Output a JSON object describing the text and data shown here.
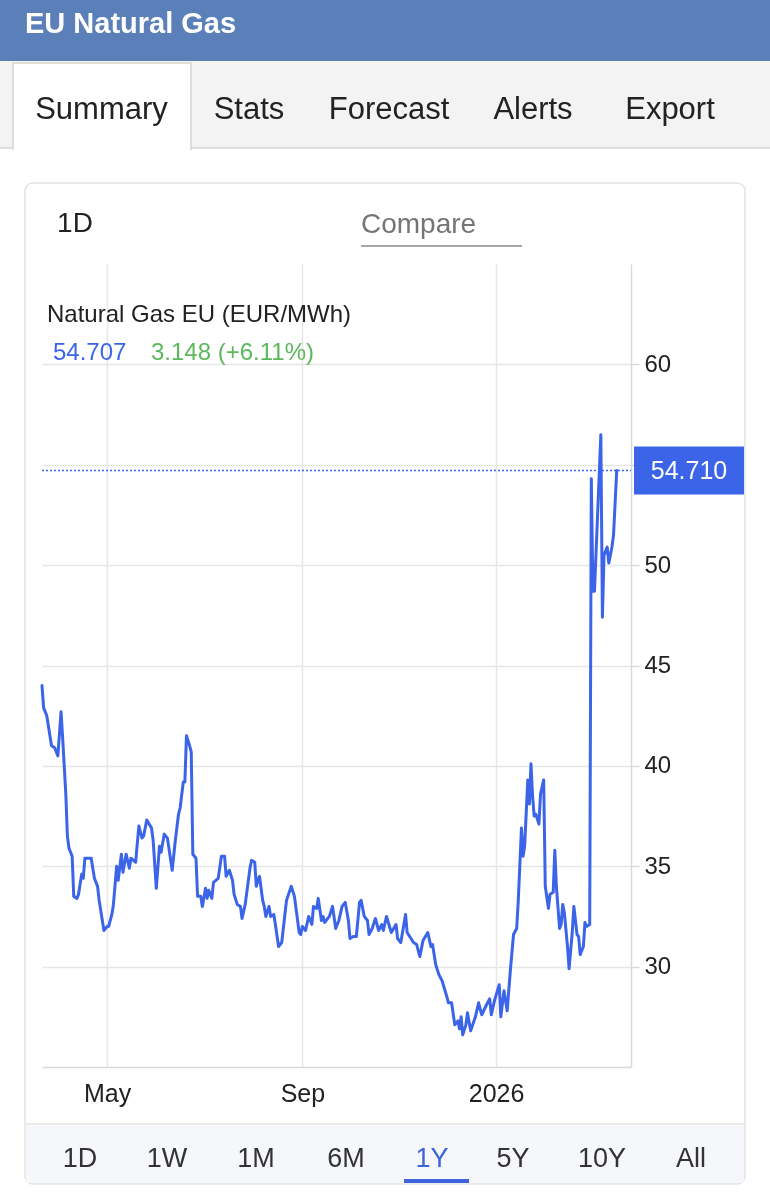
{
  "chart_data": {
    "type": "line",
    "title": "EU Natural Gas",
    "subtitle": "Natural Gas EU (EUR/MWh)",
    "annotations": [
      "54.707",
      "3.148 (+6.11%)",
      "Summary",
      "Stats",
      "Forecast",
      "Alerts",
      "Export",
      "1D",
      "Compare",
      "1D",
      "1W",
      "1M",
      "6M",
      "1Y",
      "5Y",
      "10Y",
      "All"
    ],
    "x": [
      "2025-03-21",
      "2025-03-22",
      "2025-03-24",
      "2025-03-25",
      "2025-03-27",
      "2025-03-29",
      "2025-03-31",
      "2025-04-02",
      "2025-04-03",
      "2025-04-05",
      "2025-04-06",
      "2025-04-07",
      "2025-04-09",
      "2025-04-10",
      "2025-04-12",
      "2025-04-13",
      "2025-04-15",
      "2025-04-16",
      "2025-04-17",
      "2025-04-21",
      "2025-04-23",
      "2025-04-25",
      "2025-04-26",
      "2025-04-29",
      "2025-05-01",
      "2025-05-02",
      "2025-05-04",
      "2025-05-05",
      "2025-05-07",
      "2025-05-08",
      "2025-05-10",
      "2025-05-11",
      "2025-05-13",
      "2025-05-15",
      "2025-05-16",
      "2025-05-19",
      "2025-05-21",
      "2025-05-23",
      "2025-05-24",
      "2025-05-26",
      "2025-05-29",
      "2025-05-30",
      "2025-06-01",
      "2025-06-03",
      "2025-06-04",
      "2025-06-06",
      "2025-06-08",
      "2025-06-11",
      "2025-06-13",
      "2025-06-15",
      "2025-06-16",
      "2025-06-18",
      "2025-06-19",
      "2025-06-20",
      "2025-06-22",
      "2025-06-23",
      "2025-06-24",
      "2025-06-26",
      "2025-06-27",
      "2025-06-29",
      "2025-06-30",
      "2025-07-02",
      "2025-07-03",
      "2025-07-04",
      "2025-07-06",
      "2025-07-07",
      "2025-07-10",
      "2025-07-12",
      "2025-07-14",
      "2025-07-15",
      "2025-07-17",
      "2025-07-19",
      "2025-07-20",
      "2025-07-22",
      "2025-07-24",
      "2025-07-25",
      "2025-07-27",
      "2025-07-30",
      "2025-07-31",
      "2025-08-02",
      "2025-08-03",
      "2025-08-04",
      "2025-08-05",
      "2025-08-07",
      "2025-08-08",
      "2025-08-09",
      "2025-08-11",
      "2025-08-12",
      "2025-08-14",
      "2025-08-15",
      "2025-08-17",
      "2025-08-19",
      "2025-08-22",
      "2025-08-25",
      "2025-08-27",
      "2025-08-30",
      "2025-08-31",
      "2025-09-01",
      "2025-09-03",
      "2025-09-05",
      "2025-09-07",
      "2025-09-08",
      "2025-09-10",
      "2025-09-11",
      "2025-09-13",
      "2025-09-14",
      "2025-09-15",
      "2025-09-18",
      "2025-09-20",
      "2025-09-22",
      "2025-09-24",
      "2025-09-26",
      "2025-09-28",
      "2025-09-30",
      "2025-10-01",
      "2025-10-03",
      "2025-10-05",
      "2025-10-07",
      "2025-10-08",
      "2025-10-10",
      "2025-10-12",
      "2025-10-13",
      "2025-10-15",
      "2025-10-17",
      "2025-10-19",
      "2025-10-21",
      "2025-10-22",
      "2025-10-24",
      "2025-10-27",
      "2025-10-30",
      "2025-10-31",
      "2025-11-02",
      "2025-11-05",
      "2025-11-06",
      "2025-11-10",
      "2025-11-12",
      "2025-11-14",
      "2025-11-16",
      "2025-11-19",
      "2025-11-21",
      "2025-11-22",
      "2025-11-24",
      "2025-11-26",
      "2025-11-28",
      "2025-12-01",
      "2025-12-02",
      "2025-12-04",
      "2025-12-06",
      "2025-12-08",
      "2025-12-09",
      "2025-12-10",
      "2025-12-11",
      "2025-12-13",
      "2025-12-14",
      "2025-12-16",
      "2025-12-19",
      "2025-12-21",
      "2025-12-23",
      "2025-12-26",
      "2025-12-28",
      "2025-12-29",
      "2025-12-31",
      "2026-01-03",
      "2026-01-04",
      "2026-01-06",
      "2026-01-08",
      "2026-01-10",
      "2026-01-12",
      "2026-01-14",
      "2026-01-15",
      "2026-01-17",
      "2026-01-18",
      "2026-01-19",
      "2026-01-21",
      "2026-01-22",
      "2026-01-23",
      "2026-01-24",
      "2026-01-25",
      "2026-01-26",
      "2026-01-28",
      "2026-01-29",
      "2026-01-31",
      "2026-02-01",
      "2026-02-03",
      "2026-02-04",
      "2026-02-06",
      "2026-02-07",
      "2026-02-08",
      "2026-02-10",
      "2026-02-11",
      "2026-02-12",
      "2026-02-13",
      "2026-02-15",
      "2026-02-16",
      "2026-02-18",
      "2026-02-19",
      "2026-02-21",
      "2026-02-22",
      "2026-02-23",
      "2026-02-25",
      "2026-02-26",
      "2026-02-27",
      "2026-03-01",
      "2026-03-02",
      "2026-03-03",
      "2026-03-04",
      "2026-03-08",
      "2026-03-09",
      "2026-03-10",
      "2026-03-12",
      "2026-03-13",
      "2026-03-15",
      "2026-03-16",
      "2026-03-18"
    ],
    "series": [
      {
        "color": "#3b64e8",
        "values": [
          44.0,
          42.9,
          42.5,
          42.0,
          41.0,
          40.9,
          40.5,
          42.7,
          41.4,
          38.6,
          36.5,
          35.9,
          35.5,
          33.5,
          33.4,
          33.6,
          34.6,
          34.4,
          35.4,
          35.4,
          34.4,
          34.0,
          33.3,
          31.8,
          32.0,
          32.0,
          32.6,
          33.1,
          35.0,
          34.3,
          35.6,
          34.7,
          35.6,
          34.9,
          35.4,
          35.2,
          37.0,
          36.4,
          36.5,
          37.3,
          36.9,
          36.3,
          33.9,
          36.0,
          35.7,
          36.6,
          36.4,
          34.8,
          36.3,
          37.6,
          37.9,
          39.2,
          39.2,
          41.5,
          41.0,
          40.7,
          35.6,
          35.4,
          33.5,
          33.5,
          33.0,
          33.9,
          33.4,
          33.8,
          33.4,
          34.2,
          34.4,
          35.5,
          35.5,
          34.5,
          34.8,
          34.3,
          33.6,
          33.1,
          33.0,
          32.4,
          33.1,
          34.9,
          35.3,
          35.2,
          34.0,
          34.3,
          34.5,
          33.3,
          33.0,
          32.5,
          33.0,
          32.5,
          32.6,
          32.1,
          31.0,
          31.2,
          33.3,
          34.0,
          33.5,
          31.7,
          31.6,
          32.0,
          31.8,
          32.5,
          32.1,
          33.0,
          32.9,
          33.4,
          32.3,
          32.5,
          32.2,
          32.5,
          33.0,
          31.9,
          32.3,
          33.0,
          33.2,
          32.3,
          31.4,
          31.5,
          31.5,
          33.2,
          33.3,
          32.5,
          32.3,
          31.6,
          31.9,
          32.4,
          31.8,
          32.1,
          31.8,
          32.5,
          31.7,
          32.1,
          31.4,
          31.2,
          32.6,
          31.7,
          31.2,
          31.1,
          30.5,
          31.3,
          31.7,
          31.0,
          31.1,
          30.1,
          29.6,
          29.3,
          28.5,
          28.2,
          28.2,
          27.1,
          27.3,
          26.9,
          27.5,
          26.6,
          27.1,
          27.7,
          26.8,
          27.5,
          28.2,
          27.6,
          28.1,
          28.4,
          27.6,
          28.3,
          29.1,
          27.5,
          28.8,
          27.8,
          29.8,
          31.6,
          31.9,
          33.3,
          36.9,
          35.5,
          36.0,
          39.3,
          38.1,
          40.1,
          38.5,
          37.5,
          37.6,
          37.1,
          38.6,
          39.3,
          34.0,
          32.9,
          33.6,
          33.7,
          35.8,
          34.0,
          31.9,
          32.1,
          33.1,
          32.7,
          31.0,
          29.9,
          31.7,
          33.0,
          31.6,
          31.5,
          30.6,
          31.0,
          32.2,
          32.0,
          32.1,
          54.3,
          48.7,
          48.7,
          56.5,
          47.4,
          50.5,
          50.9,
          50.1,
          50.9,
          51.5,
          54.71
        ]
      }
    ],
    "xlim": [
      "2025-03-21",
      "2026-03-27"
    ],
    "xticks": [
      {
        "value": "2025-05-01",
        "label": "May"
      },
      {
        "value": "2025-09-01",
        "label": "Sep"
      },
      {
        "value": "2026-01-01",
        "label": "2026"
      }
    ],
    "ylim": [
      25,
      65
    ],
    "yticks": [
      30,
      35,
      40,
      45,
      50,
      {
        "value": 55,
        "label": null
      },
      60
    ],
    "ref_lines": [
      {
        "axis": "y",
        "value": 54.71,
        "label": "54.710",
        "color": "#3b64e8",
        "line_style": "dotted"
      }
    ],
    "grid": true,
    "line_style": "solid"
  }
}
